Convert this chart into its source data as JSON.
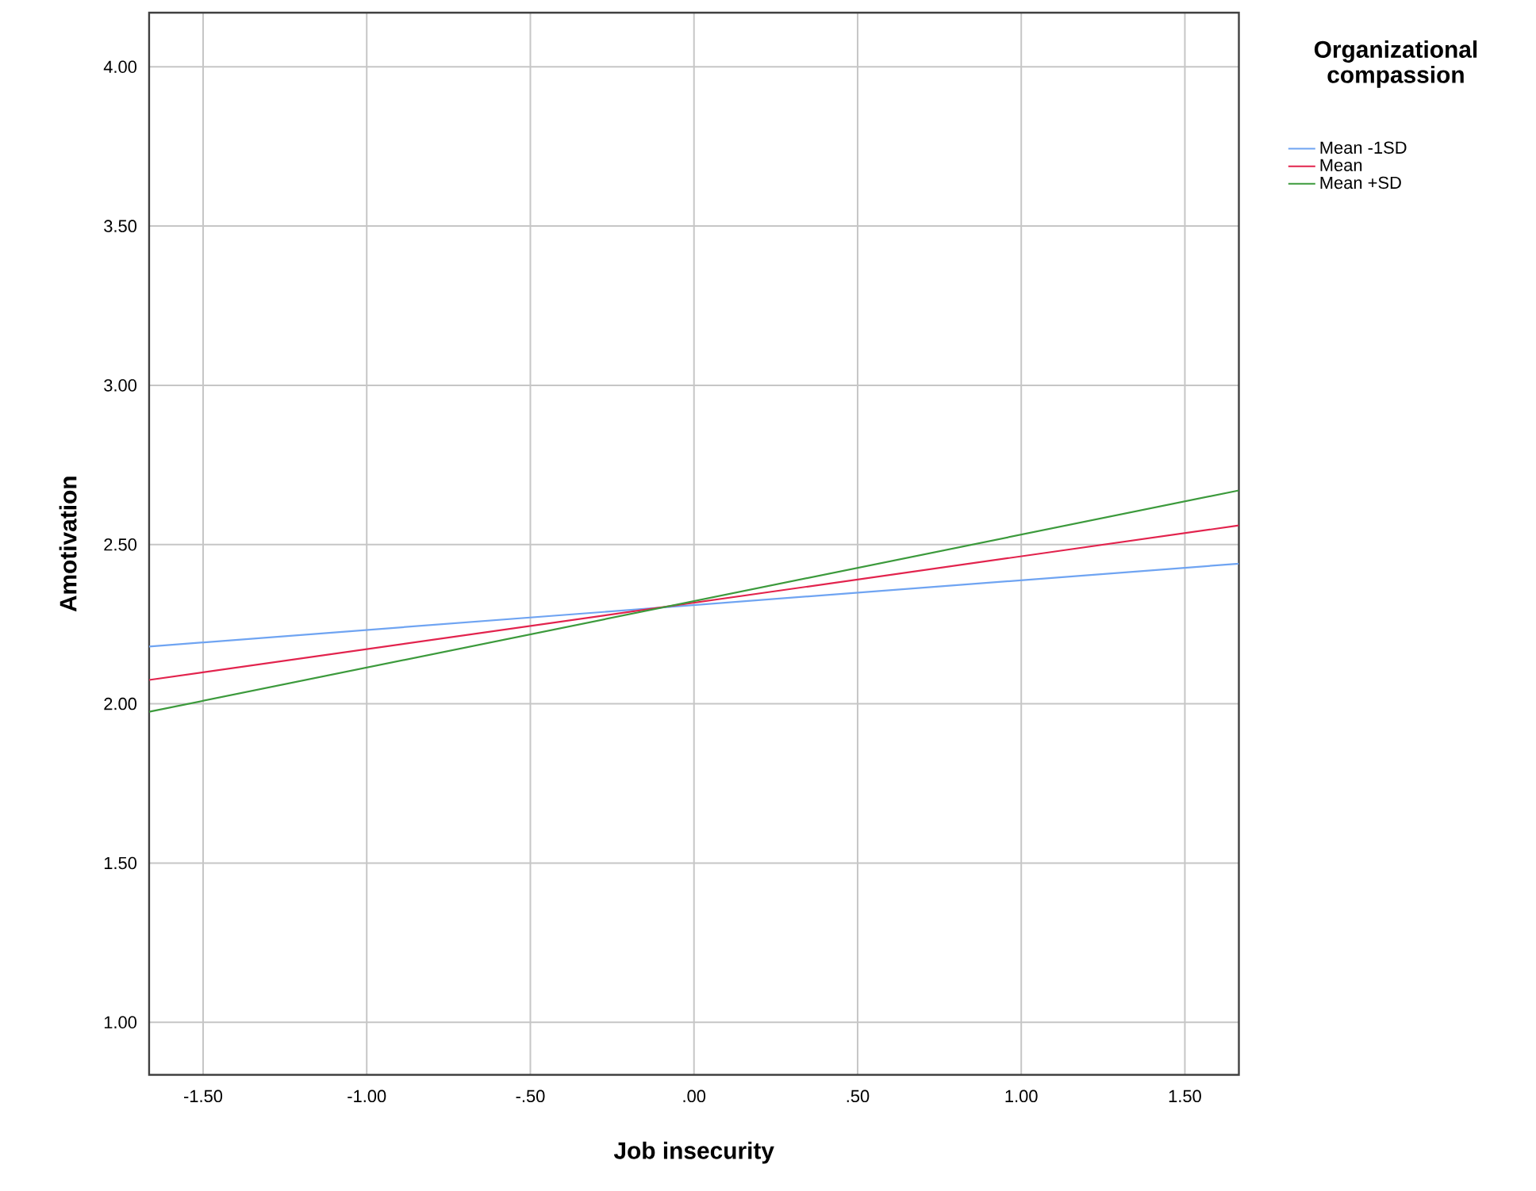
{
  "chart_data": {
    "type": "line",
    "xlabel": "Job insecurity",
    "ylabel": "Amotivation",
    "legend_title": "Organizational compassion",
    "xlim": [
      -1.665,
      1.665
    ],
    "ylim": [
      0.835,
      4.17
    ],
    "xticks": [
      {
        "value": -1.5,
        "label": "-1.50"
      },
      {
        "value": -1.0,
        "label": "-1.00"
      },
      {
        "value": -0.5,
        "label": "-.50"
      },
      {
        "value": 0,
        "label": ".00"
      },
      {
        "value": 0.5,
        "label": ".50"
      },
      {
        "value": 1.0,
        "label": "1.00"
      },
      {
        "value": 1.5,
        "label": "1.50"
      }
    ],
    "yticks": [
      {
        "value": 1.0,
        "label": "1.00"
      },
      {
        "value": 1.5,
        "label": "1.50"
      },
      {
        "value": 2.0,
        "label": "2.00"
      },
      {
        "value": 2.5,
        "label": "2.50"
      },
      {
        "value": 3.0,
        "label": "3.00"
      },
      {
        "value": 3.5,
        "label": "3.50"
      },
      {
        "value": 4.0,
        "label": "4.00"
      }
    ],
    "x": [
      -1.665,
      1.665
    ],
    "series": [
      {
        "name": "Mean -1SD",
        "color": "#6fa4f2",
        "values": [
          2.18,
          2.44
        ]
      },
      {
        "name": "Mean",
        "color": "#e2234d",
        "values": [
          2.075,
          2.56
        ]
      },
      {
        "name": "Mean +SD",
        "color": "#3c9a3c",
        "values": [
          1.975,
          2.67
        ]
      }
    ],
    "grid": true,
    "legend": "top right",
    "marker": "none",
    "line_style": "solid"
  }
}
